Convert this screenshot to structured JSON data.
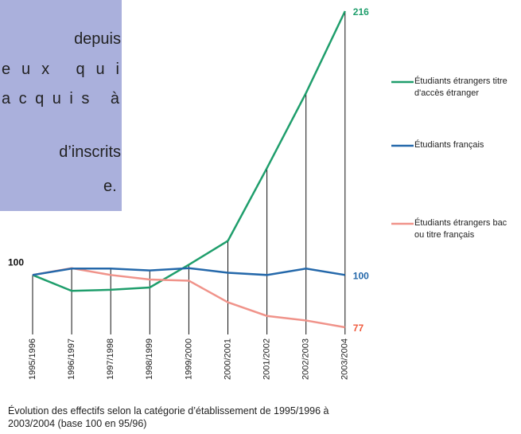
{
  "chart_data": {
    "type": "line",
    "categories": [
      "1995/1996",
      "1996/1997",
      "1997/1998",
      "1998/1999",
      "1999/2000",
      "2000/2001",
      "2001/2002",
      "2002/2003",
      "2003/2004"
    ],
    "series": [
      {
        "name": "Étudiants étrangers titre d'accès étranger",
        "color": "#1f9e6c",
        "label_color": "#1f9e6c",
        "values": [
          100,
          93,
          93.5,
          94.5,
          104.5,
          115,
          147,
          180,
          216
        ]
      },
      {
        "name": "Étudiants français",
        "color": "#2468aa",
        "label_color": "#2468aa",
        "values": [
          100,
          102.8,
          102.8,
          102,
          103,
          101,
          100,
          102.8,
          100
        ]
      },
      {
        "name": "Étudiants étrangers bac ou titre français",
        "color": "#f0938a",
        "label_color": "#f05a3c",
        "values": [
          100,
          103,
          100,
          98,
          97.5,
          88,
          82,
          80,
          77
        ]
      }
    ],
    "caption": "Évolution des effectifs selon la catégorie d’établissement de 1995/1996 à 2003/2004 (base 100 en 95/96)",
    "overlay_text": [
      "depuis",
      "eux qui",
      "acquis à",
      "d’inscrits",
      "e."
    ]
  }
}
